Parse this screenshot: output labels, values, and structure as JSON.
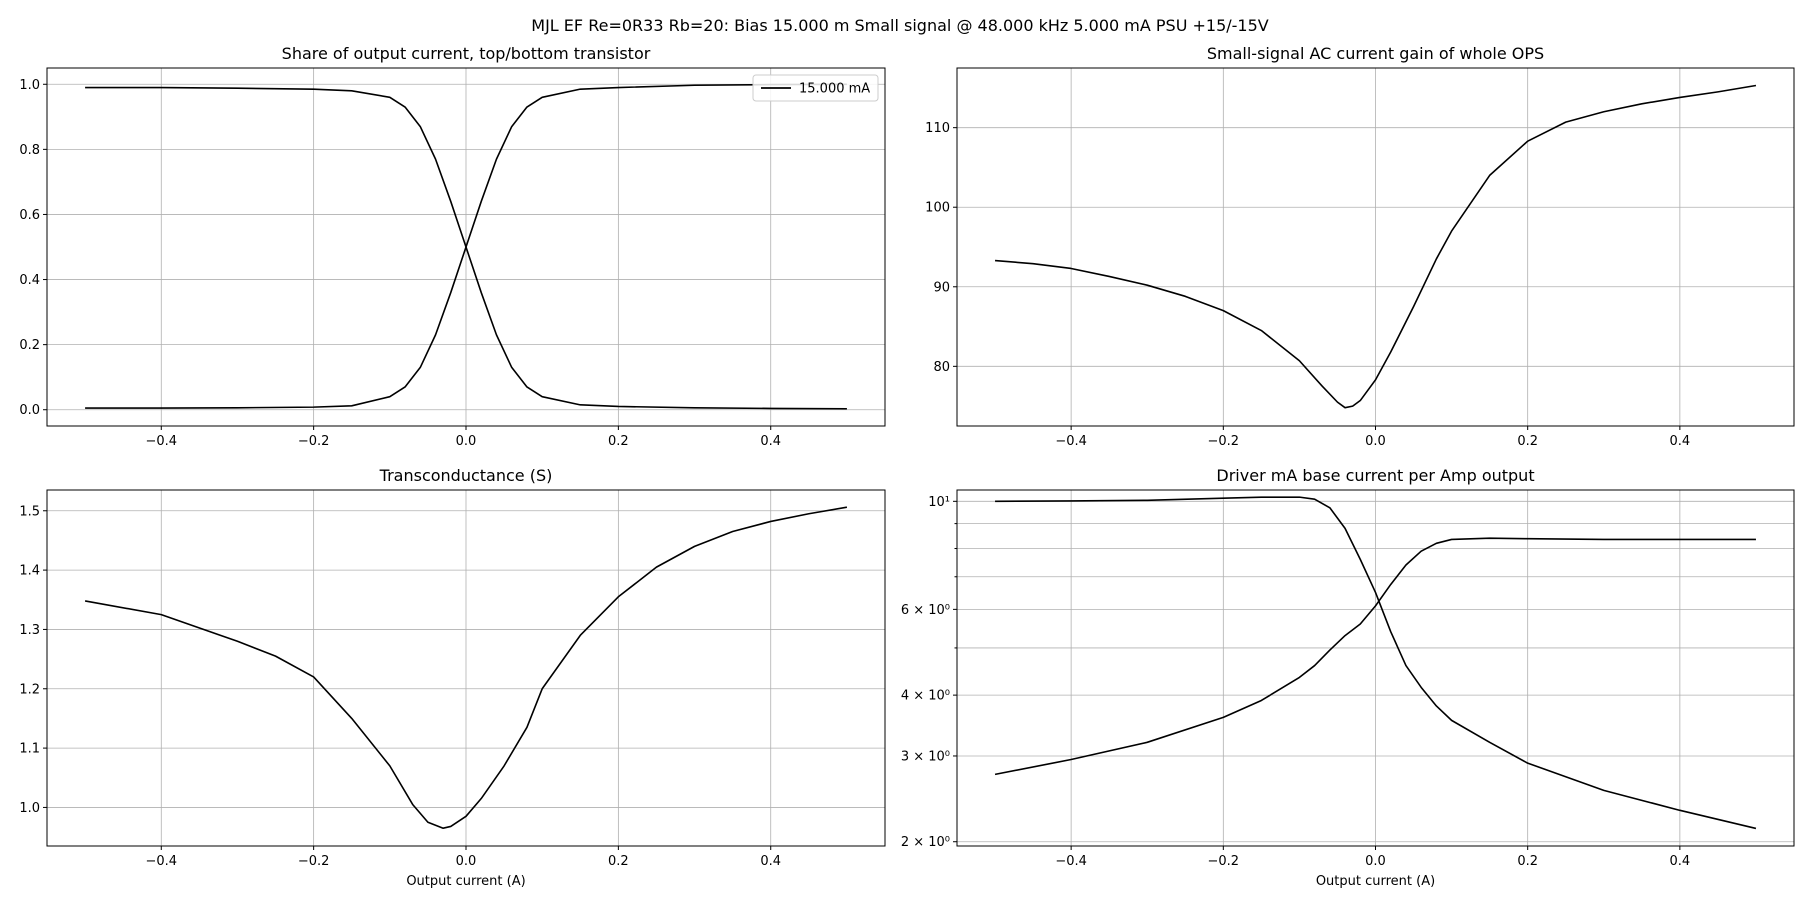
{
  "figure": {
    "suptitle": "MJL EF Re=0R33 Rb=20: Bias 15.000 m Small signal @ 48.000 kHz 5.000 mA PSU +15/-15V",
    "line_color": "#000000",
    "grid_color": "#b0b0b0"
  },
  "chart_data": [
    {
      "type": "line",
      "title": "Share of output current, top/bottom transistor",
      "xlabel": "",
      "ylabel": "",
      "xlim": [
        -0.55,
        0.55
      ],
      "ylim": [
        -0.05,
        1.05
      ],
      "xscale": "linear",
      "yscale": "linear",
      "grid": true,
      "x_ticks": [
        -0.4,
        -0.2,
        0.0,
        0.2,
        0.4
      ],
      "x_tick_labels": [
        "−0.4",
        "−0.2",
        "0.0",
        "0.2",
        "0.4"
      ],
      "y_ticks": [
        0.0,
        0.2,
        0.4,
        0.6,
        0.8,
        1.0
      ],
      "y_tick_labels": [
        "0.0",
        "0.2",
        "0.4",
        "0.6",
        "0.8",
        "1.0"
      ],
      "legend": {
        "position": "top-right",
        "entries": [
          "15.000 mA"
        ]
      },
      "series": [
        {
          "name": "15.000 mA",
          "x": [
            -0.5,
            -0.4,
            -0.3,
            -0.2,
            -0.15,
            -0.1,
            -0.08,
            -0.06,
            -0.04,
            -0.02,
            0.0,
            0.02,
            0.04,
            0.06,
            0.08,
            0.1,
            0.15,
            0.2,
            0.3,
            0.4,
            0.5
          ],
          "y": [
            0.99,
            0.99,
            0.988,
            0.985,
            0.98,
            0.96,
            0.93,
            0.87,
            0.77,
            0.64,
            0.5,
            0.36,
            0.23,
            0.13,
            0.07,
            0.04,
            0.015,
            0.01,
            0.006,
            0.004,
            0.003
          ]
        },
        {
          "x": [
            -0.5,
            -0.4,
            -0.3,
            -0.2,
            -0.15,
            -0.1,
            -0.08,
            -0.06,
            -0.04,
            -0.02,
            0.0,
            0.02,
            0.04,
            0.06,
            0.08,
            0.1,
            0.15,
            0.2,
            0.3,
            0.4,
            0.5
          ],
          "y": [
            0.005,
            0.005,
            0.006,
            0.008,
            0.012,
            0.04,
            0.07,
            0.13,
            0.23,
            0.36,
            0.5,
            0.64,
            0.77,
            0.87,
            0.93,
            0.96,
            0.985,
            0.99,
            0.997,
            0.999,
            1.0
          ]
        }
      ]
    },
    {
      "type": "line",
      "title": "Small-signal AC current gain of whole OPS",
      "xlabel": "",
      "ylabel": "",
      "xlim": [
        -0.55,
        0.55
      ],
      "ylim": [
        72.5,
        117.5
      ],
      "xscale": "linear",
      "yscale": "linear",
      "grid": true,
      "x_ticks": [
        -0.4,
        -0.2,
        0.0,
        0.2,
        0.4
      ],
      "x_tick_labels": [
        "−0.4",
        "−0.2",
        "0.0",
        "0.2",
        "0.4"
      ],
      "y_ticks": [
        80,
        90,
        100,
        110
      ],
      "y_tick_labels": [
        "80",
        "90",
        "100",
        "110"
      ],
      "series": [
        {
          "x": [
            -0.5,
            -0.45,
            -0.4,
            -0.35,
            -0.3,
            -0.25,
            -0.2,
            -0.15,
            -0.1,
            -0.07,
            -0.05,
            -0.04,
            -0.03,
            -0.02,
            0.0,
            0.02,
            0.05,
            0.08,
            0.1,
            0.15,
            0.2,
            0.25,
            0.3,
            0.35,
            0.4,
            0.45,
            0.5
          ],
          "y": [
            93.3,
            92.9,
            92.3,
            91.3,
            90.2,
            88.8,
            87.0,
            84.5,
            80.7,
            77.5,
            75.5,
            74.8,
            75.0,
            75.7,
            78.3,
            81.8,
            87.5,
            93.5,
            97.0,
            104.0,
            108.3,
            110.7,
            112.0,
            113.0,
            113.8,
            114.5,
            115.3
          ]
        }
      ]
    },
    {
      "type": "line",
      "title": "Transconductance (S)",
      "xlabel": "Output current (A)",
      "ylabel": "",
      "xlim": [
        -0.55,
        0.55
      ],
      "ylim": [
        0.935,
        1.535
      ],
      "xscale": "linear",
      "yscale": "linear",
      "grid": true,
      "x_ticks": [
        -0.4,
        -0.2,
        0.0,
        0.2,
        0.4
      ],
      "x_tick_labels": [
        "−0.4",
        "−0.2",
        "0.0",
        "0.2",
        "0.4"
      ],
      "y_ticks": [
        1.0,
        1.1,
        1.2,
        1.3,
        1.4,
        1.5
      ],
      "y_tick_labels": [
        "1.0",
        "1.1",
        "1.2",
        "1.3",
        "1.4",
        "1.5"
      ],
      "series": [
        {
          "x": [
            -0.5,
            -0.4,
            -0.3,
            -0.25,
            -0.2,
            -0.15,
            -0.1,
            -0.07,
            -0.05,
            -0.03,
            -0.02,
            0.0,
            0.02,
            0.05,
            0.08,
            0.1,
            0.15,
            0.2,
            0.25,
            0.3,
            0.35,
            0.4,
            0.45,
            0.5
          ],
          "y": [
            1.348,
            1.325,
            1.28,
            1.255,
            1.22,
            1.15,
            1.07,
            1.005,
            0.975,
            0.965,
            0.968,
            0.985,
            1.015,
            1.07,
            1.135,
            1.2,
            1.29,
            1.355,
            1.405,
            1.44,
            1.465,
            1.482,
            1.495,
            1.506
          ]
        }
      ]
    },
    {
      "type": "line",
      "title": "Driver mA base current per Amp output",
      "xlabel": "Output current (A)",
      "ylabel": "",
      "xlim": [
        -0.55,
        0.55
      ],
      "ylim": [
        1.96,
        10.55
      ],
      "xscale": "linear",
      "yscale": "log",
      "grid": true,
      "x_ticks": [
        -0.4,
        -0.2,
        0.0,
        0.2,
        0.4
      ],
      "x_tick_labels": [
        "−0.4",
        "−0.2",
        "0.0",
        "0.2",
        "0.4"
      ],
      "y_ticks": [
        2,
        3,
        4,
        6,
        10
      ],
      "y_tick_labels": [
        "2 × 10⁰",
        "3 × 10⁰",
        "4 × 10⁰",
        "6 × 10⁰",
        "10¹"
      ],
      "y_minor_ticks": [
        5,
        7,
        8,
        9
      ],
      "series": [
        {
          "x": [
            -0.5,
            -0.4,
            -0.3,
            -0.2,
            -0.15,
            -0.1,
            -0.08,
            -0.06,
            -0.04,
            -0.02,
            0.0,
            0.02,
            0.04,
            0.06,
            0.08,
            0.1,
            0.15,
            0.2,
            0.3,
            0.4,
            0.5
          ],
          "y": [
            10.0,
            10.02,
            10.05,
            10.15,
            10.2,
            10.2,
            10.1,
            9.7,
            8.8,
            7.6,
            6.5,
            5.4,
            4.6,
            4.15,
            3.8,
            3.55,
            3.2,
            2.9,
            2.55,
            2.32,
            2.13
          ]
        },
        {
          "x": [
            -0.5,
            -0.4,
            -0.3,
            -0.2,
            -0.15,
            -0.1,
            -0.08,
            -0.06,
            -0.04,
            -0.02,
            0.0,
            0.02,
            0.04,
            0.06,
            0.08,
            0.1,
            0.15,
            0.2,
            0.3,
            0.4,
            0.5
          ],
          "y": [
            2.75,
            2.95,
            3.2,
            3.6,
            3.9,
            4.35,
            4.6,
            4.95,
            5.3,
            5.6,
            6.1,
            6.75,
            7.4,
            7.9,
            8.2,
            8.35,
            8.4,
            8.38,
            8.35,
            8.35,
            8.35
          ]
        }
      ]
    }
  ]
}
